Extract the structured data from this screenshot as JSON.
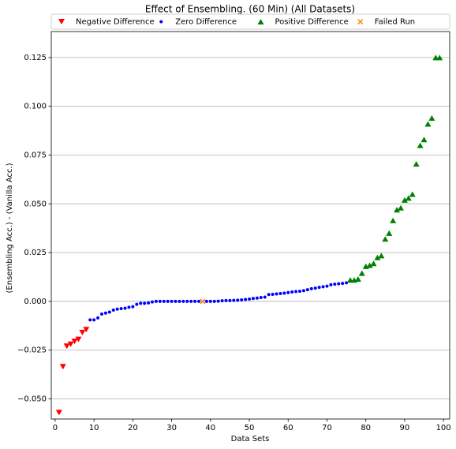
{
  "chart_data": {
    "type": "scatter",
    "title": "Effect of Ensembling. (60 Min) (All Datasets)",
    "x_label": "Data Sets",
    "y_label": "(Ensembling Acc.) - (Vanilla Acc.)",
    "xlim": [
      -1,
      101.6
    ],
    "ylim": [
      -0.0603,
      0.1383
    ],
    "xticks": [
      0,
      10,
      20,
      30,
      40,
      50,
      60,
      70,
      80,
      90,
      100
    ],
    "yticks": [
      {
        "value": -0.05,
        "label": "−0.050"
      },
      {
        "value": -0.025,
        "label": "−0.025"
      },
      {
        "value": 0,
        "label": "0.000"
      },
      {
        "value": 0.025,
        "label": "0.025"
      },
      {
        "value": 0.05,
        "label": "0.050"
      },
      {
        "value": 0.075,
        "label": "0.075"
      },
      {
        "value": 0.1,
        "label": "0.100"
      },
      {
        "value": 0.125,
        "label": "0.125"
      }
    ],
    "grid": "y",
    "legend_position": "top",
    "series": [
      {
        "name": "Negative Difference",
        "color": "#ff0000",
        "marker": "triangle-down",
        "x": [
          1,
          2,
          3,
          4,
          5,
          6,
          7,
          8
        ],
        "y": [
          -0.057,
          -0.0335,
          -0.023,
          -0.022,
          -0.0205,
          -0.0195,
          -0.016,
          -0.0145
        ]
      },
      {
        "name": "Zero Difference",
        "color": "#0000ff",
        "marker": "dot",
        "x": [
          9,
          10,
          11,
          12,
          13,
          14,
          15,
          16,
          17,
          18,
          19,
          20,
          21,
          22,
          23,
          24,
          25,
          26,
          27,
          28,
          29,
          30,
          31,
          32,
          33,
          34,
          35,
          36,
          37,
          39,
          40,
          41,
          42,
          43,
          44,
          45,
          46,
          47,
          48,
          49,
          50,
          51,
          52,
          53,
          54,
          55,
          56,
          57,
          58,
          59,
          60,
          61,
          62,
          63,
          64,
          65,
          66,
          67,
          68,
          69,
          70,
          71,
          72,
          73,
          74,
          75
        ],
        "y": [
          -0.0095,
          -0.0095,
          -0.0085,
          -0.0065,
          -0.006,
          -0.0055,
          -0.0045,
          -0.004,
          -0.0037,
          -0.0035,
          -0.003,
          -0.0027,
          -0.0015,
          -0.001,
          -0.001,
          -0.0008,
          -0.0003,
          0,
          0,
          0,
          0,
          0,
          0,
          0,
          0,
          0,
          0,
          0,
          0,
          0,
          0,
          0,
          0.0001,
          0.0003,
          0.0004,
          0.0004,
          0.0005,
          0.0006,
          0.0008,
          0.001,
          0.0012,
          0.0015,
          0.0017,
          0.002,
          0.0022,
          0.0035,
          0.0036,
          0.0038,
          0.004,
          0.0042,
          0.0045,
          0.0048,
          0.005,
          0.0052,
          0.0055,
          0.006,
          0.0065,
          0.0068,
          0.0072,
          0.0075,
          0.0078,
          0.0085,
          0.0088,
          0.009,
          0.0092,
          0.0095
        ]
      },
      {
        "name": "Positive Difference",
        "color": "#008000",
        "marker": "triangle-up",
        "x": [
          76,
          77,
          78,
          79,
          80,
          81,
          82,
          83,
          84,
          85,
          86,
          87,
          88,
          89,
          90,
          91,
          92,
          93,
          94,
          95,
          96,
          97,
          98,
          99
        ],
        "y": [
          0.011,
          0.011,
          0.0115,
          0.0145,
          0.018,
          0.0185,
          0.0195,
          0.0225,
          0.0235,
          0.032,
          0.035,
          0.0415,
          0.047,
          0.048,
          0.052,
          0.053,
          0.055,
          0.0705,
          0.08,
          0.083,
          0.091,
          0.094,
          0.125,
          0.125
        ]
      },
      {
        "name": "Failed Run",
        "color": "#ff7f0e",
        "marker": "x",
        "x": [
          38
        ],
        "y": [
          0
        ]
      }
    ]
  }
}
